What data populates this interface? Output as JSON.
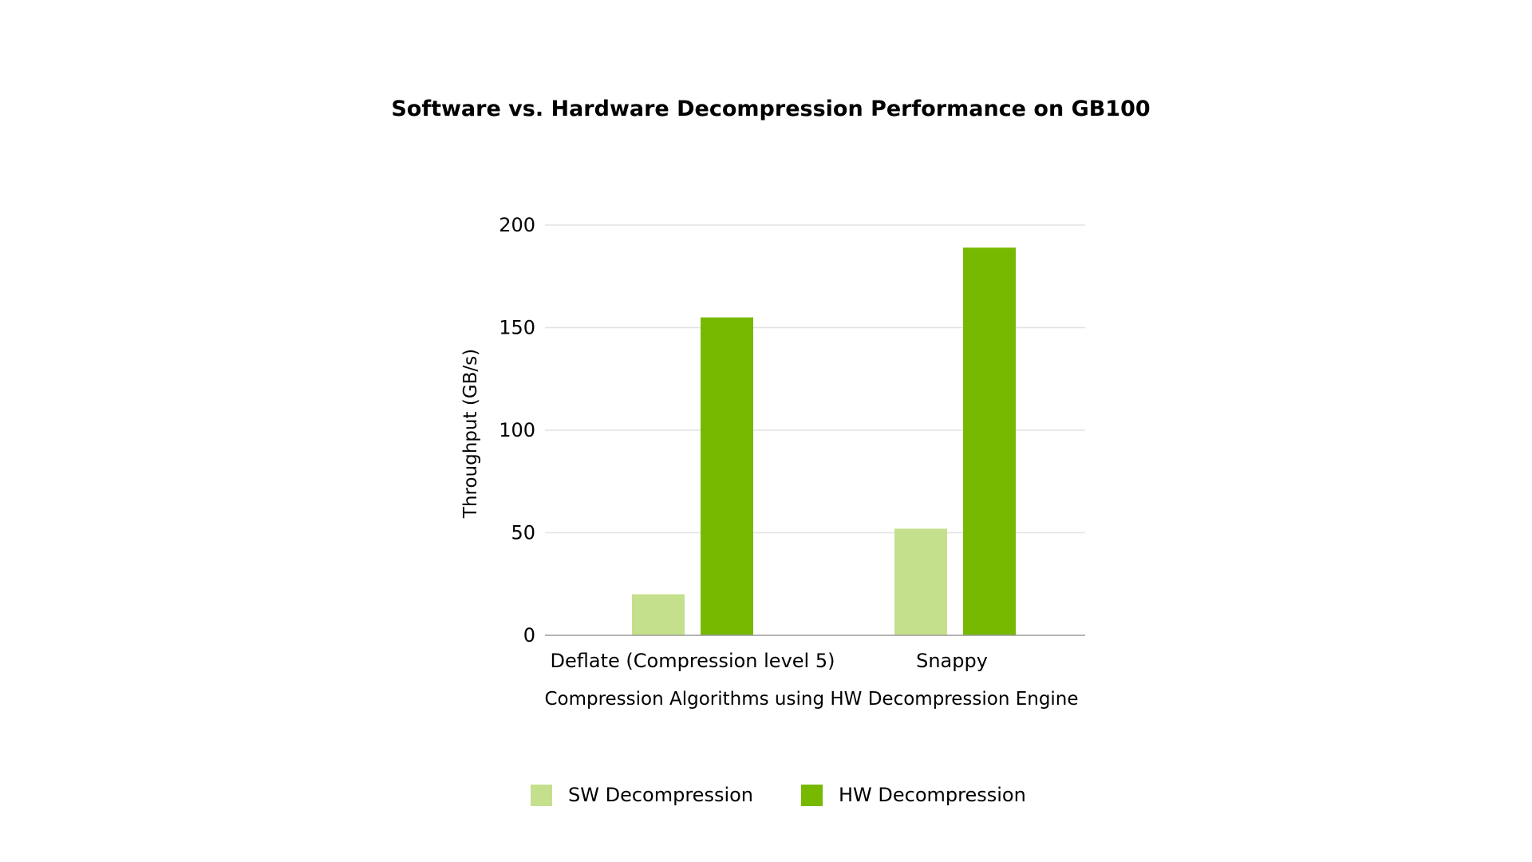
{
  "chart_data": {
    "type": "bar",
    "title": "Software vs. Hardware Decompression Performance on GB100",
    "xlabel": "Compression Algorithms using HW Decompression Engine",
    "ylabel": "Throughput (GB/s)",
    "categories": [
      "Deflate (Compression level 5)",
      "Snappy"
    ],
    "series": [
      {
        "name": "SW Decompression",
        "values": [
          20,
          52
        ],
        "color": "#c4e08c"
      },
      {
        "name": "HW Decompression",
        "values": [
          155,
          189
        ],
        "color": "#76b900"
      }
    ],
    "ylim": [
      0,
      200
    ],
    "yticks": [
      0,
      50,
      100,
      150,
      200
    ],
    "grid": true,
    "legend": "bottom-center"
  }
}
